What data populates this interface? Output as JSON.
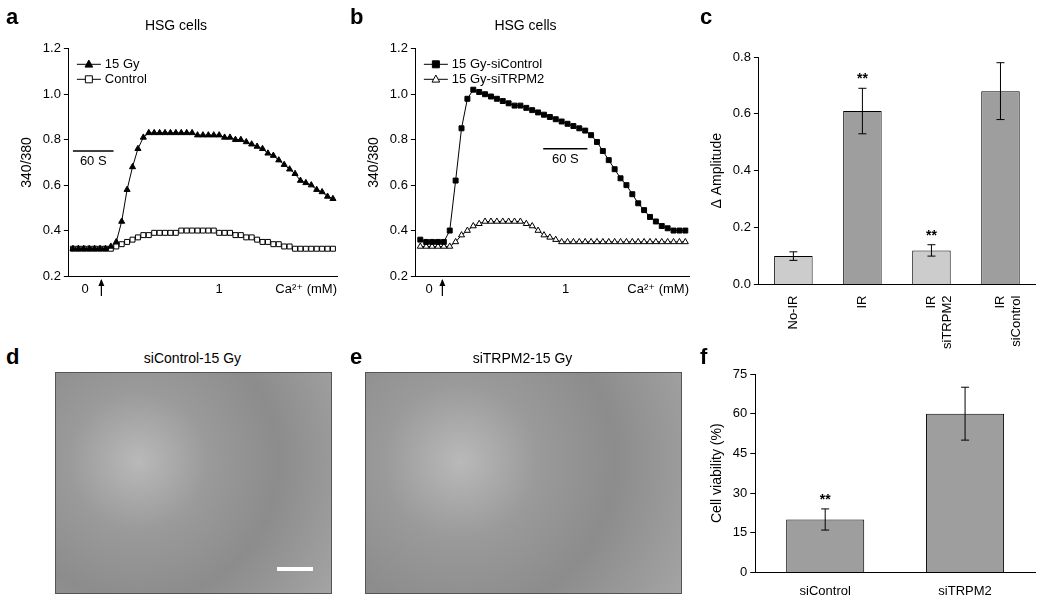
{
  "chart_data": [
    {
      "panel": "a",
      "type": "line",
      "title": "HSG cells",
      "y_label": "340/380",
      "x_label": "Ca²⁺ (mM)",
      "x": [
        0,
        8,
        16,
        24,
        32,
        40,
        48,
        56,
        64,
        72,
        80,
        88,
        96,
        104,
        112,
        120,
        128,
        136,
        144,
        152,
        160,
        168,
        176,
        184,
        192,
        200,
        208,
        216,
        224,
        232,
        240,
        248,
        256,
        264,
        272,
        280,
        288,
        296,
        304,
        312,
        320,
        328,
        336,
        344,
        352,
        360,
        368,
        376,
        384
      ],
      "xlim": [
        -6,
        390
      ],
      "ylim": [
        0.2,
        1.2
      ],
      "yticks": [
        0.2,
        0.4,
        0.6,
        0.8,
        {
          "value": 1,
          "label": "1.0"
        },
        1.2
      ],
      "tick_labels": "y",
      "grid": false,
      "legend": "upper left",
      "series": [
        {
          "name": "15 Gy",
          "color": "#000000",
          "marker": "triangle",
          "values": [
            0.32,
            0.32,
            0.32,
            0.32,
            0.32,
            0.32,
            0.32,
            0.33,
            0.35,
            0.44,
            0.58,
            0.68,
            0.76,
            0.81,
            0.83,
            0.83,
            0.83,
            0.83,
            0.83,
            0.83,
            0.83,
            0.83,
            0.83,
            0.82,
            0.82,
            0.82,
            0.82,
            0.82,
            0.81,
            0.81,
            0.8,
            0.8,
            0.79,
            0.78,
            0.77,
            0.76,
            0.74,
            0.73,
            0.71,
            0.69,
            0.67,
            0.65,
            0.62,
            0.61,
            0.6,
            0.58,
            0.57,
            0.55,
            0.54
          ]
        },
        {
          "name": "Control",
          "color": "#000000",
          "marker": "square-open",
          "values": [
            0.32,
            0.32,
            0.32,
            0.32,
            0.32,
            0.32,
            0.32,
            0.32,
            0.33,
            0.34,
            0.35,
            0.36,
            0.37,
            0.38,
            0.38,
            0.39,
            0.39,
            0.39,
            0.39,
            0.39,
            0.4,
            0.4,
            0.4,
            0.4,
            0.4,
            0.4,
            0.4,
            0.39,
            0.39,
            0.39,
            0.38,
            0.38,
            0.37,
            0.37,
            0.36,
            0.35,
            0.35,
            0.34,
            0.34,
            0.33,
            0.33,
            0.32,
            0.32,
            0.32,
            0.32,
            0.32,
            0.32,
            0.32,
            0.32
          ]
        }
      ],
      "segments": [
        {
          "label": "0",
          "from": -6,
          "to": 42
        },
        {
          "label": "1",
          "from": 42,
          "to": 390
        }
      ],
      "arrow_at": 42,
      "scale_bar": {
        "label": "60 S",
        "length": 60,
        "x": 0,
        "y": 0.75
      }
    },
    {
      "panel": "b",
      "type": "line",
      "title": "HSG cells",
      "y_label": "340/380",
      "x_label": "Ca²⁺ (mM)",
      "x": [
        0,
        8,
        16,
        24,
        32,
        40,
        48,
        56,
        64,
        72,
        80,
        88,
        96,
        104,
        112,
        120,
        128,
        136,
        144,
        152,
        160,
        168,
        176,
        184,
        192,
        200,
        208,
        216,
        224,
        232,
        240,
        248,
        256,
        264,
        272,
        280,
        288,
        296,
        304,
        312,
        320,
        328,
        336,
        344,
        352,
        360
      ],
      "xlim": [
        -6,
        365
      ],
      "ylim": [
        0.2,
        1.2
      ],
      "yticks": [
        0.2,
        0.4,
        0.6,
        0.8,
        {
          "value": 1,
          "label": "1.0"
        },
        1.2
      ],
      "tick_labels": "y",
      "grid": false,
      "legend": "upper left",
      "series": [
        {
          "name": "15 Gy-siControl",
          "color": "#000000",
          "marker": "square",
          "values": [
            0.36,
            0.35,
            0.35,
            0.35,
            0.35,
            0.4,
            0.62,
            0.85,
            0.98,
            1.02,
            1.01,
            1.0,
            0.99,
            0.98,
            0.97,
            0.96,
            0.95,
            0.95,
            0.94,
            0.93,
            0.92,
            0.91,
            0.9,
            0.89,
            0.88,
            0.87,
            0.86,
            0.85,
            0.84,
            0.82,
            0.79,
            0.75,
            0.71,
            0.67,
            0.63,
            0.6,
            0.56,
            0.52,
            0.49,
            0.46,
            0.44,
            0.42,
            0.41,
            0.4,
            0.4,
            0.4
          ]
        },
        {
          "name": "15 Gy-siTRPM2",
          "color": "#000000",
          "marker": "triangle-open",
          "values": [
            0.33,
            0.33,
            0.33,
            0.33,
            0.33,
            0.33,
            0.35,
            0.38,
            0.4,
            0.42,
            0.43,
            0.44,
            0.44,
            0.44,
            0.44,
            0.44,
            0.44,
            0.44,
            0.43,
            0.42,
            0.4,
            0.38,
            0.37,
            0.36,
            0.35,
            0.35,
            0.35,
            0.35,
            0.35,
            0.35,
            0.35,
            0.35,
            0.35,
            0.35,
            0.35,
            0.35,
            0.35,
            0.35,
            0.35,
            0.35,
            0.35,
            0.35,
            0.35,
            0.35,
            0.35,
            0.35
          ]
        }
      ],
      "segments": [
        {
          "label": "0",
          "from": -6,
          "to": 30
        },
        {
          "label": "1",
          "from": 30,
          "to": 365
        }
      ],
      "arrow_at": 30,
      "scale_bar": {
        "label": "60 S",
        "length": 60,
        "x": 167,
        "y": 0.76
      }
    },
    {
      "panel": "c",
      "type": "bar",
      "y_label": "Δ Amplitude",
      "categories": [
        "No-IR",
        "IR",
        "IR\nsiTRPM2",
        "IR\nsiControl"
      ],
      "values": [
        0.1,
        0.61,
        0.12,
        0.68
      ],
      "errors": [
        0.015,
        0.08,
        0.02,
        0.1
      ],
      "colors": [
        "#cccccc",
        "#9e9e9e",
        "#cccccc",
        "#9e9e9e"
      ],
      "ylim": [
        0,
        0.8
      ],
      "yticks": [
        {
          "value": 0,
          "label": "0.0"
        },
        0.2,
        0.4,
        0.6,
        0.8
      ],
      "grid": false,
      "annotations": [
        {
          "text": "**",
          "category": "IR"
        },
        {
          "text": "**",
          "category": "IR\nsiTRPM2"
        }
      ]
    },
    {
      "panel": "f",
      "type": "bar",
      "y_label": "Cell viability (%)",
      "categories": [
        "siControl",
        "siTRPM2"
      ],
      "values": [
        20,
        60
      ],
      "errors": [
        4,
        10
      ],
      "color": "#9e9e9e",
      "ylim": [
        0,
        75
      ],
      "yticks": [
        0,
        15,
        30,
        45,
        60,
        75
      ],
      "grid": false,
      "annotations": [
        {
          "text": "**",
          "category": "siControl"
        }
      ]
    }
  ],
  "images": [
    {
      "panel": "d",
      "title": "siControl-15 Gy"
    },
    {
      "panel": "e",
      "title": "siTRPM2-15 Gy"
    }
  ]
}
